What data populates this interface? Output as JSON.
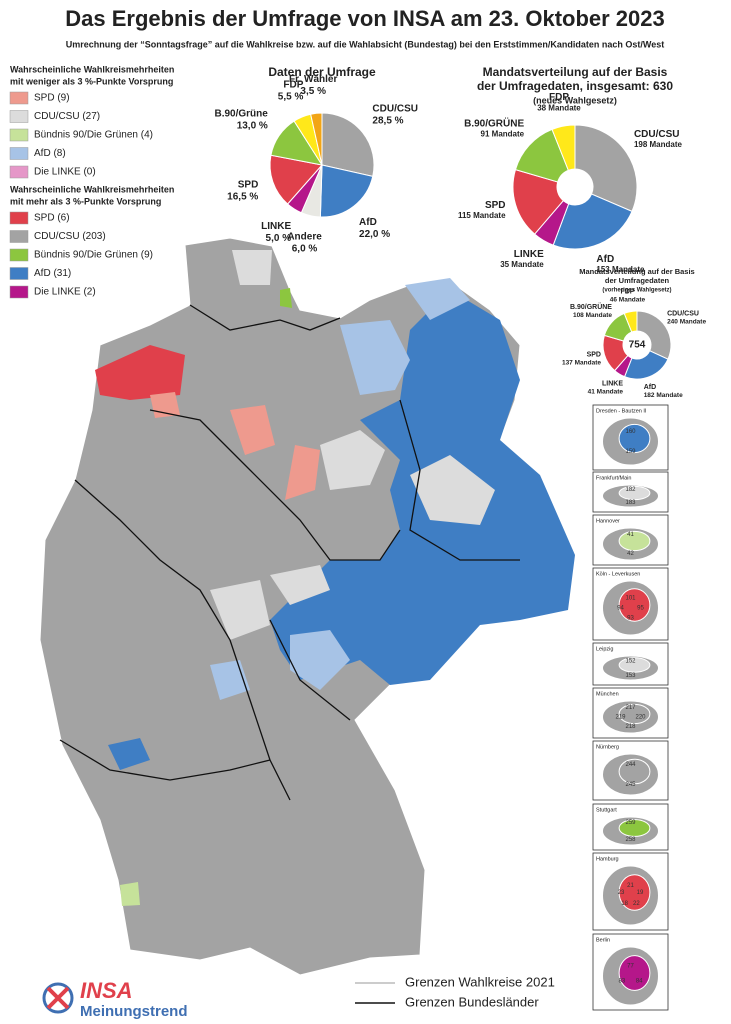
{
  "title": "Das Ergebnis der Umfrage von INSA am 23. Oktober 2023",
  "subtitle": "Umrechnung der “Sonntagsfrage” auf die Wahlkreise bzw. auf die Wahlabsicht (Bundestag) bei den Erststimmen/Kandidaten nach Ost/West",
  "legend_groups": [
    {
      "title": [
        "Wahrscheinliche Wahlkreismehrheiten",
        "mit weniger als 3 %-Punkte Vorsprung"
      ],
      "items": [
        {
          "label": "SPD (9)",
          "color": "#ee9a8e"
        },
        {
          "label": "CDU/CSU (27)",
          "color": "#dcdcdc"
        },
        {
          "label": "Bündnis 90/Die Grünen (4)",
          "color": "#c6e29a"
        },
        {
          "label": "AfD (8)",
          "color": "#a7c3e6"
        },
        {
          "label": "Die LINKE (0)",
          "color": "#e597c8"
        }
      ]
    },
    {
      "title": [
        "Wahrscheinliche Wahlkreismehrheiten",
        "mit mehr als 3 %-Punkte Vorsprung"
      ],
      "items": [
        {
          "label": "SPD (6)",
          "color": "#e0404b"
        },
        {
          "label": "CDU/CSU (203)",
          "color": "#a3a3a3"
        },
        {
          "label": "Bündnis 90/Die Grünen (9)",
          "color": "#8cc63f"
        },
        {
          "label": "AfD (31)",
          "color": "#3f7ec4"
        },
        {
          "label": "Die LINKE (2)",
          "color": "#b5178a"
        }
      ]
    }
  ],
  "chart_data": [
    {
      "type": "pie",
      "title": "Daten der Umfrage",
      "categories": [
        "CDU/CSU",
        "AfD",
        "Andere",
        "LINKE",
        "SPD",
        "B.90/Grüne",
        "FDP",
        "Fr. Wähler"
      ],
      "values": [
        28.5,
        22.0,
        6.0,
        5.0,
        16.5,
        13.0,
        5.5,
        3.5
      ],
      "value_labels": [
        "28,5 %",
        "22,0 %",
        "6,0 %",
        "5,0 %",
        "16,5 %",
        "13,0 %",
        "5,5 %",
        "3,5 %"
      ],
      "colors": [
        "#a3a3a3",
        "#3f7ec4",
        "#e8e8e3",
        "#b5178a",
        "#e0404b",
        "#8cc63f",
        "#ffe81a",
        "#f2a516"
      ]
    },
    {
      "type": "donut",
      "title": [
        "Mandatsverteilung auf der Basis",
        "der Umfragedaten, insgesamt: 630"
      ],
      "subtitle": "(neues Wahlgesetz)",
      "categories": [
        "CDU/CSU",
        "AfD",
        "LINKE",
        "SPD",
        "B.90/GRÜNE",
        "FDP"
      ],
      "values": [
        198,
        153,
        35,
        115,
        91,
        38
      ],
      "value_labels": [
        "198 Mandate",
        "153 Mandate",
        "35 Mandate",
        "115 Mandate",
        "91 Mandate",
        "38 Mandate"
      ],
      "colors": [
        "#a3a3a3",
        "#3f7ec4",
        "#b5178a",
        "#e0404b",
        "#8cc63f",
        "#ffe81a"
      ]
    },
    {
      "type": "donut",
      "title": [
        "Mandatsverteilung auf der Basis",
        "der Umfragedaten"
      ],
      "subtitle": "(vorheriges Wahlgesetz)",
      "total": "754",
      "categories": [
        "CDU/CSU",
        "AfD",
        "LINKE",
        "SPD",
        "B.90/GRÜNE",
        "FDP"
      ],
      "values": [
        240,
        182,
        41,
        137,
        108,
        46
      ],
      "value_labels": [
        "240 Mandate",
        "182 Mandate",
        "41 Mandate",
        "137 Mandate",
        "108 Mandate",
        "46 Mandate"
      ],
      "colors": [
        "#a3a3a3",
        "#3f7ec4",
        "#b5178a",
        "#e0404b",
        "#8cc63f",
        "#ffe81a"
      ]
    }
  ],
  "insets": [
    {
      "name": "Dresden - Bautzen II",
      "labels": [
        "160",
        "159"
      ],
      "color": "#3f7ec4"
    },
    {
      "name": "Frankfurt/Main",
      "labels": [
        "182",
        "183"
      ],
      "color": "#dcdcdc"
    },
    {
      "name": "Hannover",
      "labels": [
        "41",
        "42"
      ],
      "color": "#c6e29a"
    },
    {
      "name": "Köln - Leverkusen",
      "labels": [
        "101",
        "95",
        "93",
        "94"
      ],
      "color": "#e0404b"
    },
    {
      "name": "Leipzig",
      "labels": [
        "152",
        "153"
      ],
      "color": "#dcdcdc"
    },
    {
      "name": "München",
      "labels": [
        "217",
        "220",
        "218",
        "219"
      ],
      "color": "#a3a3a3"
    },
    {
      "name": "Nürnberg",
      "labels": [
        "244",
        "245"
      ],
      "color": "#a3a3a3"
    },
    {
      "name": "Stuttgart",
      "labels": [
        "259",
        "258"
      ],
      "color": "#8cc63f"
    },
    {
      "name": "Hamburg",
      "labels": [
        "21",
        "19",
        "22",
        "18",
        "23"
      ],
      "color": "#e0404b"
    },
    {
      "name": "Berlin",
      "labels": [
        "77",
        "84",
        "83"
      ],
      "color": "#b5178a"
    }
  ],
  "map_legend": [
    "Grenzen Wahlkreise 2021",
    "Grenzen Bundesländer"
  ],
  "logo": {
    "brand": "INSA",
    "tagline": "Meinungstrend"
  }
}
